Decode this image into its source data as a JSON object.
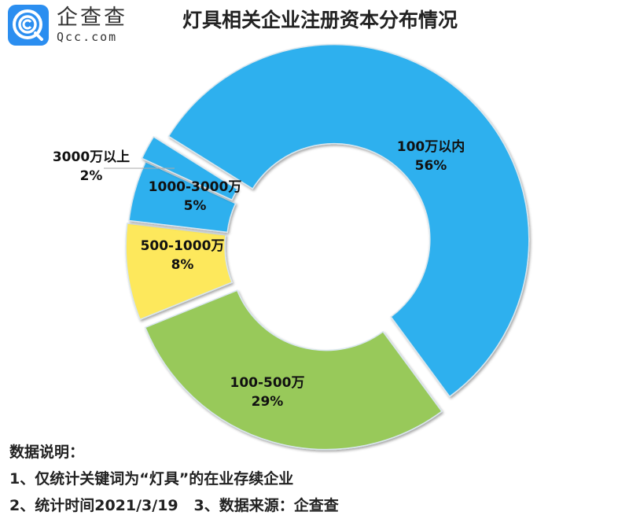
{
  "brand": {
    "name_cn": "企查查",
    "domain": "Qcc.com",
    "icon": "qcc-logo-icon",
    "color": "#2b8ef0"
  },
  "title": "灯具相关企业注册资本分布情况",
  "chart_data": {
    "type": "pie",
    "subtype": "donut",
    "title": "灯具相关企业注册资本分布情况",
    "categories": [
      "100万以内",
      "100-500万",
      "500-1000万",
      "1000-3000万",
      "3000万以上"
    ],
    "values": [
      56,
      29,
      8,
      5,
      2
    ],
    "unit": "%",
    "colors": [
      "#2fb0ee",
      "#98c95a",
      "#fde85c",
      "#2fb0ee",
      "#2fb0ee"
    ],
    "labels": [
      {
        "name": "100万以内",
        "pct": "56%"
      },
      {
        "name": "100-500万",
        "pct": "29%"
      },
      {
        "name": "500-1000万",
        "pct": "8%"
      },
      {
        "name": "1000-3000万",
        "pct": "5%"
      },
      {
        "name": "3000万以上",
        "pct": "2%"
      }
    ],
    "legend": "none",
    "exploded": true
  },
  "notes": {
    "heading": "数据说明：",
    "line1": "1、仅统计关键词为“灯具”的在业存续企业",
    "line2": "2、统计时间2021/3/19   3、数据来源：企查查"
  }
}
